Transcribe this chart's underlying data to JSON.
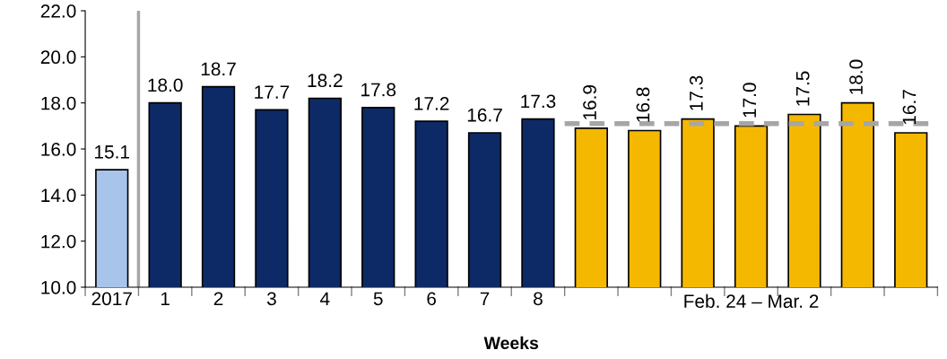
{
  "chart_data": {
    "type": "bar",
    "xlabel": "Weeks",
    "categories": [
      "2017",
      "1",
      "2",
      "3",
      "4",
      "5",
      "6",
      "7",
      "8",
      null,
      null,
      null,
      null,
      null,
      null,
      null
    ],
    "values": [
      15.1,
      18.0,
      18.7,
      17.7,
      18.2,
      17.8,
      17.2,
      16.7,
      17.3,
      16.9,
      16.8,
      17.3,
      17.0,
      17.5,
      18.0,
      16.7
    ],
    "colors": [
      "#a9c4eb",
      "#0d2a66",
      "#0d2a66",
      "#0d2a66",
      "#0d2a66",
      "#0d2a66",
      "#0d2a66",
      "#0d2a66",
      "#0d2a66",
      "#f5b800",
      "#f5b800",
      "#f5b800",
      "#f5b800",
      "#f5b800",
      "#f5b800",
      "#f5b800"
    ],
    "value_labels": [
      "15.1",
      "18.0",
      "18.7",
      "17.7",
      "18.2",
      "17.8",
      "17.2",
      "16.7",
      "17.3",
      "16.9",
      "16.8",
      "17.3",
      "17.0",
      "17.5",
      "18.0",
      "16.7"
    ],
    "ylim": [
      10,
      22
    ],
    "yticks": [
      {
        "value": 10,
        "label": "10.0"
      },
      {
        "value": 12,
        "label": "12.0"
      },
      {
        "value": 14,
        "label": "14.0"
      },
      {
        "value": 16,
        "label": "16.0"
      },
      {
        "value": 18,
        "label": "18.0"
      },
      {
        "value": 20,
        "label": "20.0"
      },
      {
        "value": 22,
        "label": "22.0"
      }
    ],
    "ref_lines": [
      {
        "axis": "y",
        "value": 17.1,
        "color": "#a6a6a6",
        "line_style": "dashed"
      }
    ],
    "annotations": [
      "Feb. 24 – Mar. 2"
    ],
    "grid": false,
    "legend": false
  }
}
